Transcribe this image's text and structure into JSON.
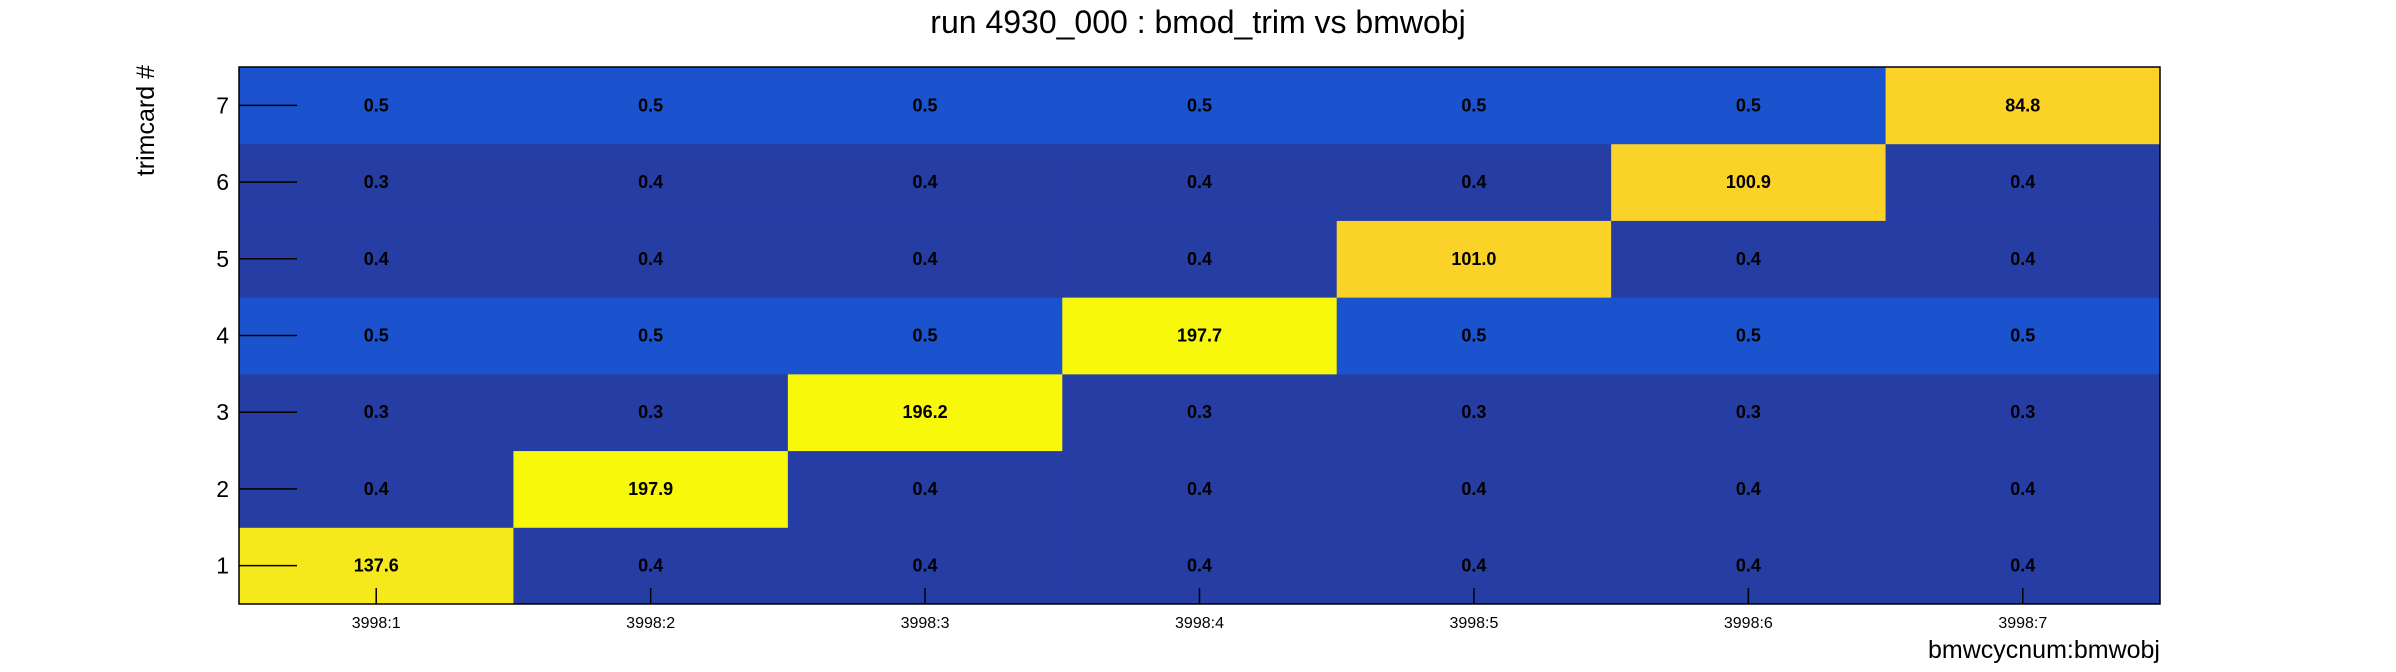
{
  "chart_data": {
    "type": "heatmap",
    "title": "run 4930_000 : bmod_trim vs bmwobj",
    "xlabel": "bmwcycnum:bmwobj",
    "ylabel": "trimcard #",
    "x_categories": [
      "3998:1",
      "3998:2",
      "3998:3",
      "3998:4",
      "3998:5",
      "3998:6",
      "3998:7"
    ],
    "y_categories": [
      "1",
      "2",
      "3",
      "4",
      "5",
      "6",
      "7"
    ],
    "values": [
      [
        137.6,
        0.4,
        0.4,
        0.4,
        0.4,
        0.4,
        0.4
      ],
      [
        0.4,
        197.9,
        0.4,
        0.4,
        0.4,
        0.4,
        0.4
      ],
      [
        0.3,
        0.3,
        196.2,
        0.3,
        0.3,
        0.3,
        0.3
      ],
      [
        0.5,
        0.5,
        0.5,
        197.7,
        0.5,
        0.5,
        0.5
      ],
      [
        0.4,
        0.4,
        0.4,
        0.4,
        101.0,
        0.4,
        0.4
      ],
      [
        0.3,
        0.4,
        0.4,
        0.4,
        0.4,
        100.9,
        0.4
      ],
      [
        0.5,
        0.5,
        0.5,
        0.5,
        0.5,
        0.5,
        84.8
      ]
    ],
    "value_format": "one-decimal",
    "colors": {
      "low": "#263da4",
      "low_mid": "#1a53cd",
      "mid": "#fbd228",
      "high_mid": "#f5e91c",
      "high": "#f8f80a"
    },
    "grid": false,
    "legend": "none"
  }
}
